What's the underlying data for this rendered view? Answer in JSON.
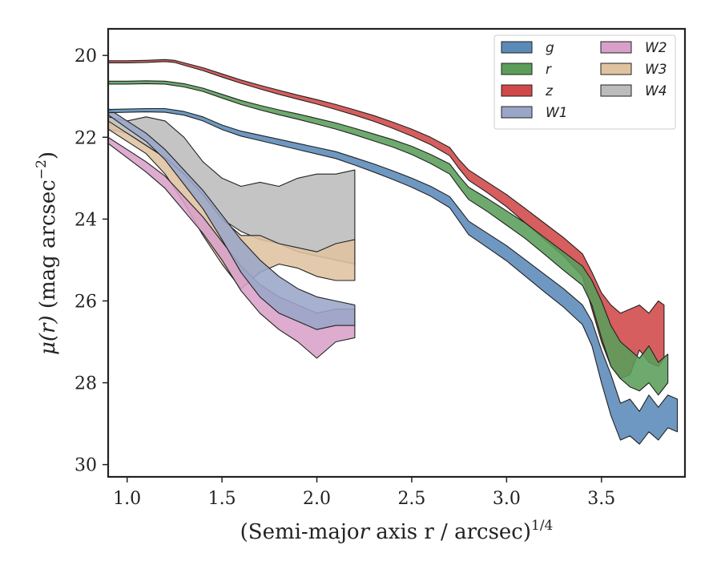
{
  "chart_data": {
    "type": "area",
    "title": "",
    "xlabel": "(Semi-major axis r / arcsec)",
    "xlabel_italic": "r",
    "xlabel_exponent": "1/4",
    "ylabel": "μ(r) (mag arcsec",
    "ylabel_exponent": "−2",
    "ylabel_close": ")",
    "xlim": [
      0.9,
      3.94
    ],
    "ylim": [
      30.3,
      19.35
    ],
    "y_inverted": true,
    "xticks": [
      1.0,
      1.5,
      2.0,
      2.5,
      3.0,
      3.5
    ],
    "xtick_labels": [
      "1.0",
      "1.5",
      "2.0",
      "2.5",
      "3.0",
      "3.5"
    ],
    "yticks": [
      20,
      22,
      24,
      26,
      28,
      30
    ],
    "ytick_labels": [
      "20",
      "22",
      "24",
      "26",
      "28",
      "30"
    ],
    "grid": false,
    "legend": {
      "placement": "top-right",
      "columns": 2
    },
    "series": [
      {
        "name": "g",
        "color": "#5a8ab8",
        "x": [
          0.9,
          1.0,
          1.1,
          1.2,
          1.3,
          1.4,
          1.5,
          1.6,
          1.7,
          1.8,
          1.9,
          2.0,
          2.1,
          2.2,
          2.3,
          2.4,
          2.5,
          2.6,
          2.7,
          2.75,
          2.8,
          2.9,
          3.0,
          3.1,
          3.2,
          3.3,
          3.4,
          3.45,
          3.5,
          3.55,
          3.6,
          3.65,
          3.7,
          3.75,
          3.8,
          3.85,
          3.9
        ],
        "lo": [
          21.32,
          21.31,
          21.3,
          21.3,
          21.37,
          21.5,
          21.7,
          21.85,
          21.95,
          22.05,
          22.15,
          22.25,
          22.35,
          22.5,
          22.65,
          22.82,
          23.0,
          23.2,
          23.45,
          23.75,
          24.05,
          24.35,
          24.65,
          25.0,
          25.35,
          25.7,
          26.1,
          26.5,
          27.2,
          27.8,
          28.5,
          28.4,
          28.7,
          28.3,
          28.6,
          28.3,
          28.4
        ],
        "hi": [
          21.4,
          21.39,
          21.38,
          21.39,
          21.46,
          21.6,
          21.81,
          21.97,
          22.08,
          22.19,
          22.3,
          22.41,
          22.52,
          22.68,
          22.85,
          23.03,
          23.22,
          23.44,
          23.72,
          24.05,
          24.38,
          24.7,
          25.02,
          25.4,
          25.78,
          26.15,
          26.58,
          27.1,
          28.0,
          28.8,
          29.4,
          29.3,
          29.5,
          29.2,
          29.4,
          29.1,
          29.2
        ]
      },
      {
        "name": "r",
        "color": "#5a9e5a",
        "x": [
          0.9,
          1.0,
          1.1,
          1.2,
          1.3,
          1.4,
          1.5,
          1.6,
          1.7,
          1.8,
          1.9,
          2.0,
          2.1,
          2.2,
          2.3,
          2.4,
          2.5,
          2.6,
          2.7,
          2.75,
          2.8,
          2.9,
          3.0,
          3.1,
          3.2,
          3.3,
          3.4,
          3.45,
          3.5,
          3.55,
          3.6,
          3.65,
          3.7,
          3.75,
          3.8,
          3.85
        ],
        "lo": [
          20.63,
          20.63,
          20.62,
          20.63,
          20.69,
          20.8,
          20.95,
          21.1,
          21.22,
          21.33,
          21.43,
          21.54,
          21.65,
          21.78,
          21.92,
          22.06,
          22.22,
          22.42,
          22.65,
          22.95,
          23.22,
          23.5,
          23.8,
          24.1,
          24.45,
          24.8,
          25.15,
          25.5,
          26.0,
          26.6,
          27.0,
          27.2,
          27.4,
          27.1,
          27.5,
          27.3
        ],
        "hi": [
          20.7,
          20.7,
          20.69,
          20.7,
          20.77,
          20.88,
          21.04,
          21.2,
          21.33,
          21.45,
          21.56,
          21.68,
          21.8,
          21.94,
          22.09,
          22.24,
          22.42,
          22.64,
          22.9,
          23.22,
          23.52,
          23.82,
          24.15,
          24.48,
          24.86,
          25.25,
          25.62,
          26.1,
          26.9,
          27.6,
          27.9,
          28.1,
          28.2,
          28.0,
          28.3,
          28.0
        ]
      },
      {
        "name": "z",
        "color": "#d04848",
        "x": [
          0.9,
          1.0,
          1.1,
          1.2,
          1.25,
          1.3,
          1.4,
          1.5,
          1.6,
          1.7,
          1.8,
          1.9,
          2.0,
          2.1,
          2.2,
          2.3,
          2.4,
          2.5,
          2.6,
          2.7,
          2.75,
          2.8,
          2.9,
          3.0,
          3.1,
          3.2,
          3.3,
          3.4,
          3.45,
          3.5,
          3.55,
          3.6,
          3.65,
          3.7,
          3.75,
          3.8,
          3.83
        ],
        "lo": [
          20.13,
          20.13,
          20.12,
          20.1,
          20.12,
          20.18,
          20.3,
          20.45,
          20.6,
          20.73,
          20.85,
          20.97,
          21.08,
          21.2,
          21.33,
          21.47,
          21.63,
          21.8,
          22.0,
          22.25,
          22.55,
          22.8,
          23.1,
          23.4,
          23.75,
          24.1,
          24.45,
          24.85,
          25.3,
          25.8,
          26.1,
          26.3,
          26.2,
          26.1,
          26.3,
          26.0,
          26.1
        ],
        "hi": [
          20.18,
          20.18,
          20.17,
          20.15,
          20.17,
          20.24,
          20.37,
          20.53,
          20.68,
          20.82,
          20.95,
          21.07,
          21.19,
          21.32,
          21.46,
          21.61,
          21.78,
          21.97,
          22.18,
          22.45,
          22.77,
          23.05,
          23.36,
          23.7,
          24.1,
          24.5,
          24.9,
          25.4,
          26.2,
          27.0,
          27.6,
          27.9,
          27.8,
          27.2,
          27.5,
          27.6,
          27.4
        ]
      },
      {
        "name": "W1",
        "color": "#9aa6c8",
        "x": [
          0.9,
          1.0,
          1.1,
          1.2,
          1.3,
          1.4,
          1.5,
          1.6,
          1.7,
          1.8,
          1.9,
          2.0,
          2.1,
          2.2
        ],
        "lo": [
          21.3,
          21.6,
          21.9,
          22.3,
          22.8,
          23.3,
          23.9,
          24.5,
          25.0,
          25.4,
          25.7,
          25.9,
          26.0,
          26.1
        ],
        "hi": [
          21.45,
          21.78,
          22.1,
          22.55,
          23.15,
          23.75,
          24.5,
          25.3,
          25.9,
          26.3,
          26.5,
          26.7,
          26.6,
          26.6
        ]
      },
      {
        "name": "W2",
        "color": "#d8a0c8",
        "x": [
          0.9,
          1.0,
          1.1,
          1.2,
          1.3,
          1.4,
          1.5,
          1.6,
          1.7,
          1.8,
          1.9,
          2.0,
          2.1,
          2.2
        ],
        "lo": [
          22.0,
          22.3,
          22.6,
          22.95,
          23.45,
          23.95,
          24.55,
          25.15,
          25.6,
          25.9,
          26.1,
          26.3,
          26.2,
          26.2
        ],
        "hi": [
          22.15,
          22.5,
          22.85,
          23.25,
          23.8,
          24.35,
          25.0,
          25.75,
          26.3,
          26.7,
          27.0,
          27.4,
          27.0,
          26.9
        ]
      },
      {
        "name": "W3",
        "color": "#dfc3a0",
        "x": [
          0.9,
          1.0,
          1.1,
          1.2,
          1.3,
          1.4,
          1.5,
          1.6,
          1.7,
          1.8,
          1.9,
          2.0,
          2.1,
          2.2
        ],
        "lo": [
          21.6,
          21.9,
          22.2,
          22.5,
          22.9,
          23.4,
          24.0,
          24.4,
          24.4,
          24.6,
          24.7,
          24.8,
          24.6,
          24.5
        ],
        "hi": [
          21.8,
          22.1,
          22.4,
          22.9,
          23.6,
          24.4,
          25.1,
          25.7,
          25.3,
          25.1,
          25.2,
          25.4,
          25.5,
          25.5
        ]
      },
      {
        "name": "W4",
        "color": "#bcbcbc",
        "x": [
          0.9,
          1.0,
          1.1,
          1.2,
          1.3,
          1.4,
          1.5,
          1.6,
          1.7,
          1.8,
          1.9,
          2.0,
          2.1,
          2.2
        ],
        "lo": [
          21.5,
          21.6,
          21.5,
          21.6,
          22.0,
          22.6,
          23.0,
          23.2,
          23.1,
          23.2,
          23.0,
          22.9,
          22.9,
          22.8
        ],
        "hi": [
          21.8,
          21.9,
          22.2,
          22.5,
          22.9,
          23.4,
          24.0,
          24.3,
          24.5,
          24.6,
          24.8,
          24.9,
          25.0,
          25.1
        ]
      }
    ]
  }
}
